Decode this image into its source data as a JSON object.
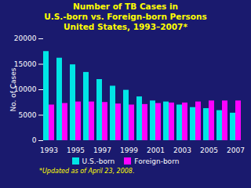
{
  "chart_data": {
    "type": "bar",
    "title": "Number of TB Cases in\nU.S.-born vs. Foreign-born Persons\nUnited States, 1993–2007*",
    "ylabel": "No. of Cases",
    "categories": [
      "1993",
      null,
      "1995",
      null,
      "1997",
      null,
      "1999",
      null,
      "2001",
      null,
      "2003",
      null,
      "2005",
      null,
      "2007"
    ],
    "series": [
      {
        "name": "U.S.-born",
        "color": "#00E5E5",
        "values": [
          17500,
          16200,
          14900,
          13400,
          12000,
          10700,
          9900,
          8600,
          7800,
          7600,
          7000,
          6500,
          6300,
          5900,
          5400
        ]
      },
      {
        "name": "Foreign-born",
        "color": "#FF00FF",
        "values": [
          7000,
          7300,
          7600,
          7600,
          7500,
          7200,
          7000,
          7100,
          7300,
          7400,
          7400,
          7600,
          7800,
          7800,
          7800
        ]
      }
    ],
    "ylim": [
      0,
      20000
    ],
    "yticks": [
      0,
      5000,
      10000,
      15000,
      20000
    ],
    "annotations": [
      "*Updated as of April 23, 2008."
    ]
  }
}
